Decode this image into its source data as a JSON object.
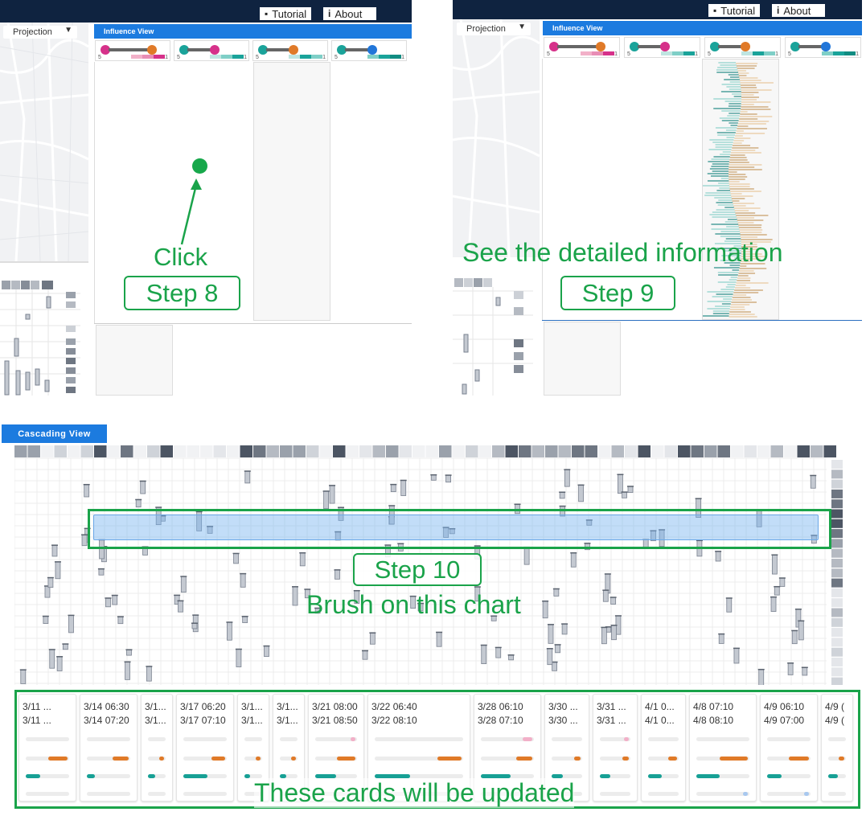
{
  "top_buttons": {
    "tutorial": "Tutorial",
    "about": "About"
  },
  "projection": {
    "label": "Projection"
  },
  "influence_view": {
    "title": "Influence View"
  },
  "cascading_view": {
    "title": "Cascading View"
  },
  "legend_cards": [
    {
      "from": "#d6318a",
      "to": "#e07a28",
      "scale_min": "5",
      "scale_max": "1"
    },
    {
      "from": "#1aa39a",
      "to": "#d6318a",
      "scale_min": "5",
      "scale_max": "1"
    },
    {
      "from": "#1aa39a",
      "to": "#e07a28",
      "scale_min": "5",
      "scale_max": "1"
    },
    {
      "from": "#1aa39a",
      "to": "#2176d9",
      "scale_min": "5",
      "scale_max": "1"
    }
  ],
  "annotations": {
    "click": "Click",
    "step8": "Step 8",
    "detail": "See the detailed information",
    "step9": "Step 9",
    "step10": "Step 10",
    "brush": "Brush on this chart",
    "cards_updated": "These cards will be updated"
  },
  "colors": {
    "accent": "#1c7bdf",
    "annotation": "#1aa34a",
    "orange": "#e07a28",
    "teal": "#17a095",
    "pink": "#f2b0c8",
    "blue": "#a8c8ef"
  },
  "cards": [
    {
      "start": "3/11 ...",
      "end": "3/11 ...",
      "pink": 0,
      "orange": 0.7,
      "teal": 0.55,
      "blue": 0
    },
    {
      "start": "3/14 06:30",
      "end": "3/14 07:20",
      "pink": 0,
      "orange": 0.6,
      "teal": 0.3,
      "blue": 0
    },
    {
      "start": "3/1...",
      "end": "3/1...",
      "pink": 0,
      "orange": 0.45,
      "teal": 0.6,
      "blue": 0
    },
    {
      "start": "3/17 06:20",
      "end": "3/17 07:10",
      "pink": 0,
      "orange": 0.5,
      "teal": 0.9,
      "blue": 0
    },
    {
      "start": "3/1...",
      "end": "3/1...",
      "pink": 0,
      "orange": 0.4,
      "teal": 0.5,
      "blue": 0
    },
    {
      "start": "3/1...",
      "end": "3/1...",
      "pink": 0,
      "orange": 0.45,
      "teal": 0.55,
      "blue": 0
    },
    {
      "start": "3/21 08:00",
      "end": "3/21 08:50",
      "pink": 0.2,
      "orange": 0.7,
      "teal": 0.8,
      "blue": 0
    },
    {
      "start": "3/22 06:40",
      "end": "3/22 08:10",
      "pink": 0,
      "orange": 0.45,
      "teal": 0.65,
      "blue": 0
    },
    {
      "start": "3/28 06:10",
      "end": "3/28 07:10",
      "pink": 0.3,
      "orange": 0.5,
      "teal": 0.9,
      "blue": 0
    },
    {
      "start": "3/30 ...",
      "end": "3/30 ...",
      "pink": 0,
      "orange": 0.35,
      "teal": 0.6,
      "blue": 0
    },
    {
      "start": "3/31 ...",
      "end": "3/31 ...",
      "pink": 0.15,
      "orange": 0.35,
      "teal": 0.55,
      "blue": 0
    },
    {
      "start": "4/1 0...",
      "end": "4/1 0...",
      "pink": 0,
      "orange": 0.45,
      "teal": 0.7,
      "blue": 0
    },
    {
      "start": "4/8 07:10",
      "end": "4/8 08:10",
      "pink": 0,
      "orange": 0.85,
      "teal": 0.7,
      "blue": 0.15
    },
    {
      "start": "4/9 06:10",
      "end": "4/9 07:00",
      "pink": 0,
      "orange": 0.75,
      "teal": 0.55,
      "blue": 0.15
    },
    {
      "start": "4/9 (",
      "end": "4/9 (",
      "pink": 0,
      "orange": 0.5,
      "teal": 0.8,
      "blue": 0
    }
  ]
}
